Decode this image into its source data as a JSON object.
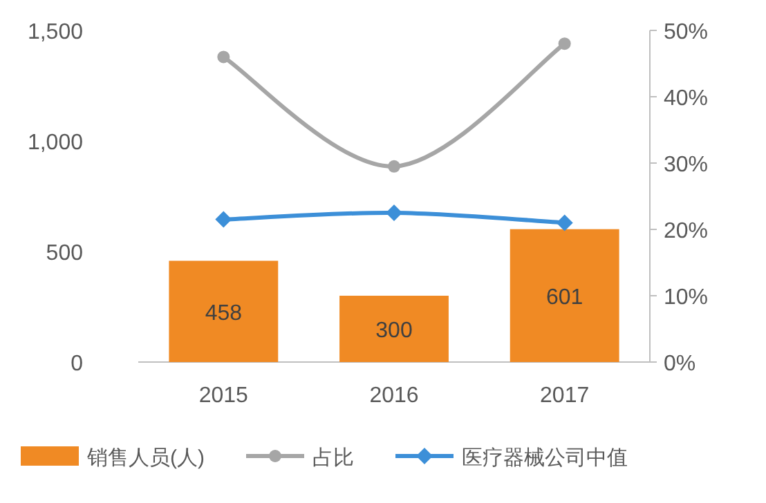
{
  "chart_data": {
    "type": "bar",
    "categories": [
      "2015",
      "2016",
      "2017"
    ],
    "series": [
      {
        "name": "销售人员(人)",
        "color": "#f08a24",
        "values": [
          458,
          300,
          601
        ],
        "value_labels": [
          "458",
          "300",
          "601"
        ]
      },
      {
        "name": "占比",
        "type": "line",
        "axis": "y2",
        "color": "#a6a6a6",
        "marker": "circle",
        "values": [
          46,
          29.5,
          48
        ]
      },
      {
        "name": "医疗器械公司中值",
        "type": "line",
        "axis": "y2",
        "color": "#3c8fd8",
        "marker": "diamond",
        "values": [
          21.5,
          22.5,
          21
        ]
      }
    ],
    "ylim": [
      0,
      1500
    ],
    "yticks": [
      0,
      500,
      {
        "value": 1000,
        "label": "1,000"
      },
      {
        "value": 1500,
        "label": "1,500"
      }
    ],
    "y2lim": [
      0,
      50
    ],
    "y2ticks": [
      {
        "value": 0,
        "label": "0%"
      },
      {
        "value": 10,
        "label": "10%"
      },
      {
        "value": 20,
        "label": "20%"
      },
      {
        "value": 30,
        "label": "30%"
      },
      {
        "value": 40,
        "label": "40%"
      },
      {
        "value": 50,
        "label": "50%"
      }
    ],
    "legend": "bottom",
    "grid": false
  }
}
